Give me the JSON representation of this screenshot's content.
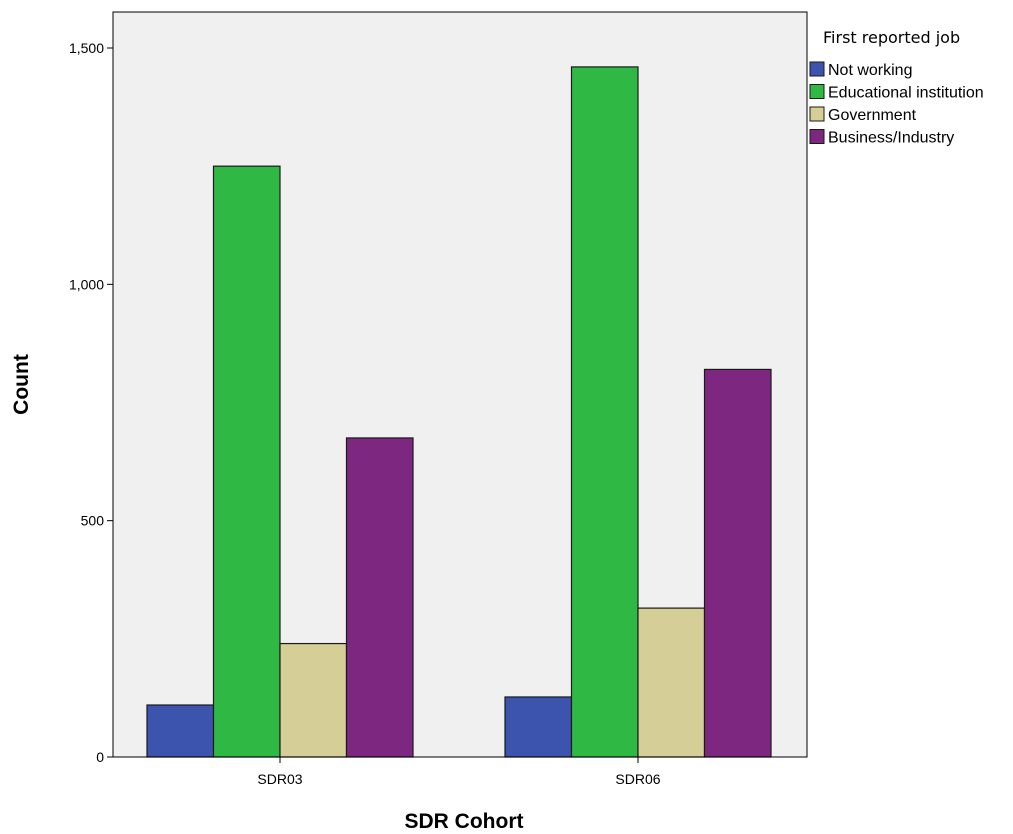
{
  "chart_data": {
    "type": "bar",
    "categories": [
      "SDR03",
      "SDR06"
    ],
    "series": [
      {
        "name": "Not working",
        "values": [
          110,
          127
        ],
        "color": "#3c54ad"
      },
      {
        "name": "Educational institution",
        "values": [
          1250,
          1460
        ],
        "color": "#2fb944"
      },
      {
        "name": "Government",
        "values": [
          240,
          315
        ],
        "color": "#d5ce97"
      },
      {
        "name": "Business/Industry",
        "values": [
          675,
          820
        ],
        "color": "#7d2780"
      }
    ],
    "title": "",
    "xlabel": "SDR Cohort",
    "ylabel": "Count",
    "ylim": [
      0,
      1500
    ],
    "yticks": [
      0,
      500,
      1000,
      1500
    ],
    "ytick_labels": [
      "0",
      "500",
      "1,000",
      "1,500"
    ],
    "legend_title": "First reported job",
    "legend_position": "right",
    "grid": false,
    "plot_background": "#f0f0f0"
  }
}
